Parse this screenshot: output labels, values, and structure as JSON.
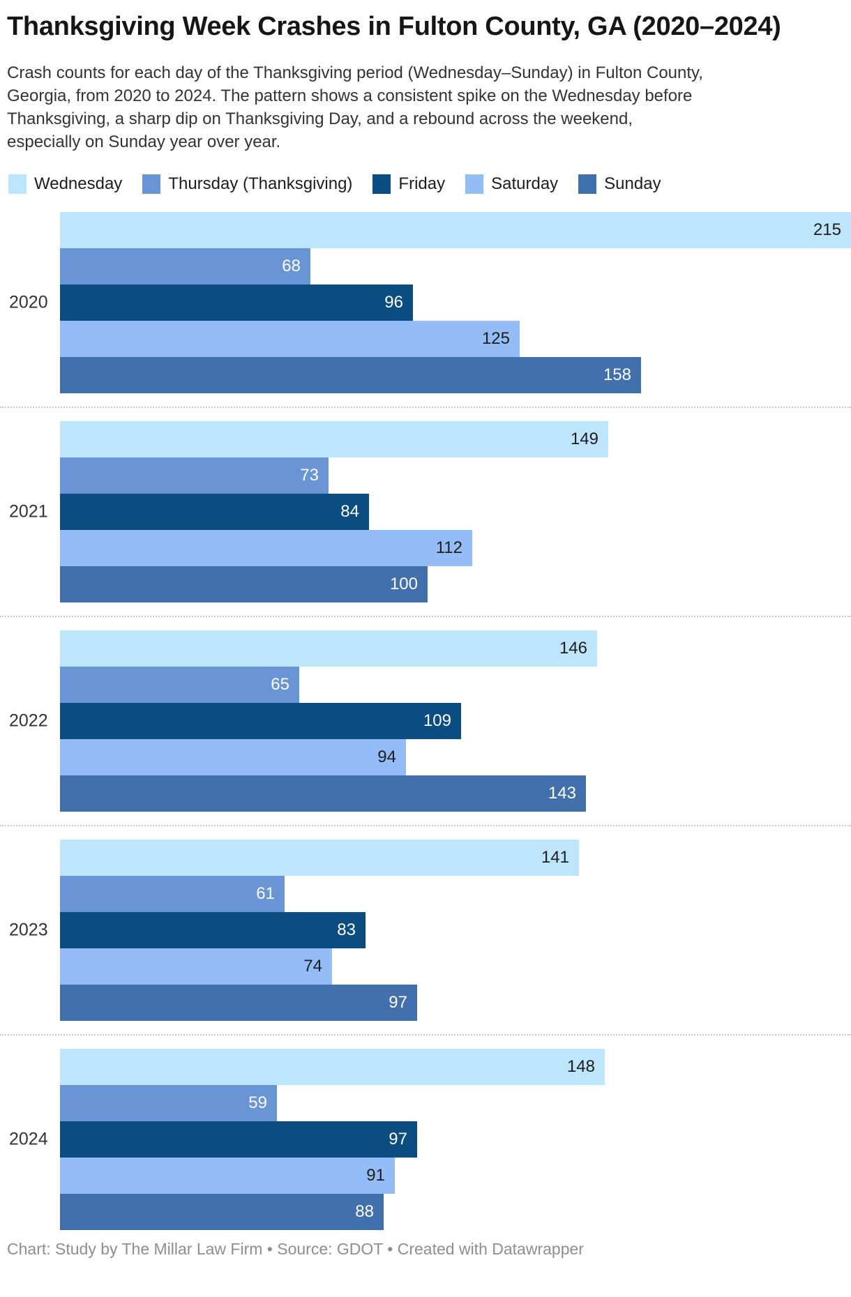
{
  "header": {
    "title": "Thanksgiving Week Crashes in Fulton County, GA (2020–2024)",
    "subtitle": "Crash counts for each day of the Thanksgiving period (Wednesday–Sunday) in Fulton County, Georgia, from 2020 to 2024. The pattern shows a consistent spike on the Wednesday before Thanksgiving, a sharp dip on Thanksgiving Day, and a rebound across the weekend, especially on Sunday year over year."
  },
  "legend": [
    {
      "label": "Wednesday",
      "color": "#bde5fb"
    },
    {
      "label": "Thursday (Thanksgiving)",
      "color": "#6994d6"
    },
    {
      "label": "Friday",
      "color": "#0b4d80"
    },
    {
      "label": "Saturday",
      "color": "#94bdf8"
    },
    {
      "label": "Sunday",
      "color": "#4170ad"
    }
  ],
  "chart_data": {
    "type": "bar",
    "orientation": "horizontal",
    "title": "Thanksgiving Week Crashes in Fulton County, GA (2020–2024)",
    "categories": [
      "2020",
      "2021",
      "2022",
      "2023",
      "2024"
    ],
    "series": [
      {
        "name": "Wednesday",
        "color": "#bde5fb",
        "label_color": "#1d1d1d",
        "values": [
          215,
          149,
          146,
          141,
          148
        ]
      },
      {
        "name": "Thursday (Thanksgiving)",
        "color": "#6994d6",
        "label_color": "#ffffff",
        "values": [
          68,
          73,
          65,
          61,
          59
        ]
      },
      {
        "name": "Friday",
        "color": "#0b4d80",
        "label_color": "#ffffff",
        "values": [
          96,
          84,
          109,
          83,
          97
        ]
      },
      {
        "name": "Saturday",
        "color": "#94bdf8",
        "label_color": "#1d1d1d",
        "values": [
          125,
          112,
          94,
          74,
          91
        ]
      },
      {
        "name": "Sunday",
        "color": "#4170ad",
        "label_color": "#ffffff",
        "values": [
          158,
          100,
          143,
          97,
          88
        ]
      }
    ],
    "xmax": 215,
    "xlabel": "",
    "ylabel": "",
    "grid": false,
    "legend_position": "top",
    "value_labels": "inside-end",
    "group_separator": "dotted"
  },
  "footer": {
    "text": "Chart: Study by The Millar Law Firm • Source: GDOT • Created with Datawrapper"
  }
}
